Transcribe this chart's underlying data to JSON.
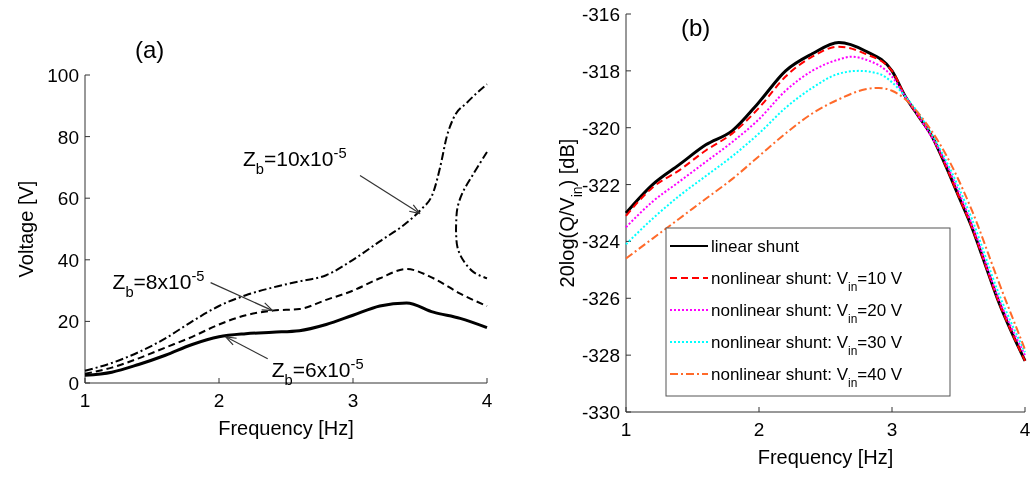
{
  "chart_data": [
    {
      "type": "line",
      "title": "(a)",
      "xlabel": "Frequency [Hz]",
      "ylabel": "Voltage [V]",
      "xlim": [
        1,
        4
      ],
      "xticks": [
        1,
        2,
        3,
        4
      ],
      "ylim": [
        0,
        100
      ],
      "yticks": [
        0,
        20,
        40,
        60,
        80,
        100
      ],
      "grid": false,
      "legend": false,
      "series": [
        {
          "color": "#000000",
          "line_style": "solid",
          "x": [
            1,
            1.2,
            1.4,
            1.6,
            1.8,
            2,
            2.2,
            2.4,
            2.6,
            2.8,
            3,
            3.2,
            3.4,
            3.6,
            3.8,
            4
          ],
          "values": [
            2.5,
            3.5,
            6,
            9,
            12.5,
            15,
            16,
            16.5,
            17,
            19,
            22,
            25,
            26,
            23,
            21,
            18
          ]
        },
        {
          "color": "#000000",
          "line_style": "dashed",
          "x": [
            1,
            1.2,
            1.4,
            1.6,
            1.8,
            2,
            2.2,
            2.4,
            2.6,
            2.8,
            3,
            3.2,
            3.4,
            3.6,
            3.8,
            4
          ],
          "values": [
            3,
            5,
            8,
            11.5,
            15,
            19,
            22,
            23.5,
            24,
            27,
            30,
            34,
            37,
            34,
            29,
            25
          ]
        },
        {
          "color": "#000000",
          "line_style": "dashdot",
          "x": [
            1,
            1.2,
            1.4,
            1.6,
            1.8,
            2,
            2.2,
            2.4,
            2.6,
            2.8,
            3,
            3.2,
            3.4,
            3.5,
            3.6,
            3.65,
            3.7,
            3.75,
            3.85,
            4
          ],
          "values": [
            4,
            6.5,
            10,
            14.5,
            20,
            25,
            28.5,
            31,
            33,
            35,
            40,
            46,
            52,
            56,
            62,
            70,
            80,
            86,
            91,
            97
          ]
        },
        {
          "color": "#000000",
          "line_style": "dashdot",
          "x": [
            4,
            3.9,
            3.82,
            3.78,
            3.77,
            3.77,
            3.78,
            3.82,
            3.9,
            4
          ],
          "values": [
            75,
            68,
            62,
            57,
            52,
            48,
            44,
            40,
            36,
            34
          ]
        }
      ],
      "annotations": [
        {
          "text": "Z$_{b}$=10x10$^{-5}$",
          "x": 3.5,
          "y": 55
        },
        {
          "text": "Z$_{b}$=8x10$^{-5}$",
          "x": 2.4,
          "y": 23.5
        },
        {
          "text": "Z$_{b}$=6x10$^{-5}$",
          "x": 2.05,
          "y": 15
        }
      ]
    },
    {
      "type": "line",
      "title": "(b)",
      "xlabel": "Frequency [Hz]",
      "ylabel": "20log(Q/V$_{in}$) [dB]",
      "xlim": [
        1,
        4
      ],
      "xticks": [
        1,
        2,
        3,
        4
      ],
      "ylim": [
        -330,
        -316
      ],
      "yticks": [
        -330,
        -328,
        -326,
        -324,
        -322,
        -320,
        -318,
        -316
      ],
      "grid": false,
      "legend": "bottom left",
      "series": [
        {
          "name": "linear shunt",
          "color": "#000000",
          "line_style": "solid",
          "x": [
            1,
            1.2,
            1.4,
            1.6,
            1.8,
            2,
            2.2,
            2.4,
            2.6,
            2.8,
            3,
            3.1,
            3.2,
            3.3,
            3.4,
            3.5,
            3.6,
            3.7,
            3.8,
            3.9,
            4
          ],
          "values": [
            -323,
            -322,
            -321.3,
            -320.6,
            -320.1,
            -319.1,
            -318,
            -317.4,
            -317,
            -317.3,
            -318,
            -318.9,
            -319.6,
            -320.3,
            -321.3,
            -322.4,
            -323.5,
            -324.8,
            -326.1,
            -327.2,
            -328.2
          ]
        },
        {
          "name": "nonlinear shunt: V$_{in}$=10 V",
          "color": "#ff0000",
          "line_style": "dashed",
          "x": [
            1,
            1.2,
            1.4,
            1.6,
            1.8,
            2,
            2.2,
            2.4,
            2.6,
            2.8,
            3,
            3.1,
            3.2,
            3.3,
            3.4,
            3.5,
            3.6,
            3.7,
            3.8,
            3.9,
            4
          ],
          "values": [
            -323.1,
            -322.1,
            -321.5,
            -320.8,
            -320.2,
            -319.3,
            -318.2,
            -317.5,
            -317.15,
            -317.4,
            -318,
            -318.9,
            -319.6,
            -320.3,
            -321.3,
            -322.4,
            -323.5,
            -324.8,
            -326.1,
            -327.2,
            -328.2
          ]
        },
        {
          "name": "nonlinear shunt: V$_{in}$=20 V",
          "color": "#ff00ff",
          "line_style": "dotted",
          "x": [
            1,
            1.2,
            1.4,
            1.6,
            1.8,
            2,
            2.2,
            2.4,
            2.6,
            2.7,
            2.8,
            3,
            3.1,
            3.2,
            3.4,
            3.6,
            3.8,
            4
          ],
          "values": [
            -323.5,
            -322.6,
            -321.9,
            -321.2,
            -320.5,
            -319.7,
            -318.7,
            -318,
            -317.6,
            -317.5,
            -317.6,
            -318.2,
            -318.9,
            -319.6,
            -321.2,
            -323.4,
            -326,
            -328
          ]
        },
        {
          "name": "nonlinear shunt: V$_{in}$=30 V",
          "color": "#00ffff",
          "line_style": "dotted",
          "x": [
            1,
            1.2,
            1.4,
            1.6,
            1.8,
            2,
            2.2,
            2.4,
            2.6,
            2.75,
            2.9,
            3,
            3.1,
            3.2,
            3.4,
            3.6,
            3.8,
            4
          ],
          "values": [
            -324.1,
            -323.2,
            -322.4,
            -321.7,
            -321,
            -320.2,
            -319.3,
            -318.6,
            -318.1,
            -318,
            -318.1,
            -318.4,
            -318.9,
            -319.5,
            -321.1,
            -323.2,
            -325.8,
            -327.9
          ]
        },
        {
          "name": "nonlinear shunt: V$_{in}$=40 V",
          "color": "#ff6a2a",
          "line_style": "dashdot",
          "x": [
            1,
            1.2,
            1.4,
            1.6,
            1.8,
            2,
            2.2,
            2.4,
            2.6,
            2.8,
            2.9,
            3,
            3.1,
            3.2,
            3.4,
            3.6,
            3.8,
            4
          ],
          "values": [
            -324.6,
            -323.9,
            -323.2,
            -322.5,
            -321.8,
            -321,
            -320.2,
            -319.5,
            -319,
            -318.65,
            -318.6,
            -318.7,
            -319,
            -319.5,
            -320.9,
            -322.9,
            -325.4,
            -327.8
          ]
        }
      ]
    }
  ]
}
